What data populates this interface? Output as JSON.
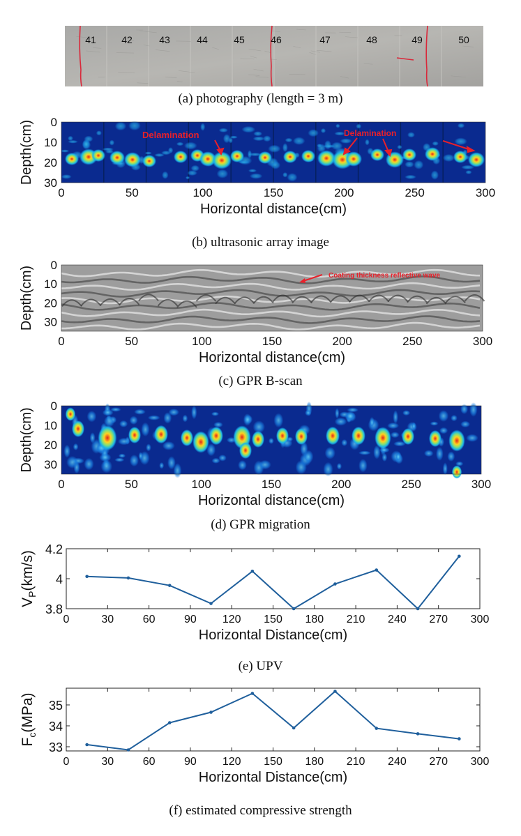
{
  "photo": {
    "caption": "(a) photography (length = 3 m)",
    "segments": [
      "41",
      "42",
      "43",
      "44",
      "45",
      "46",
      "47",
      "48",
      "49",
      "50"
    ]
  },
  "ultrasonic": {
    "caption": "(b) ultrasonic array image",
    "ylabel": "Depth(cm)",
    "xlabel": "Horizontal distance(cm)",
    "yticks": [
      "0",
      "10",
      "20",
      "30"
    ],
    "xticks": [
      "0",
      "50",
      "100",
      "150",
      "200",
      "250",
      "300"
    ],
    "annotations": [
      "Delamination",
      "Delamination"
    ]
  },
  "bscan": {
    "caption": "(c) GPR B-scan",
    "ylabel": "Depth(cm)",
    "xlabel": "Horizontal distance(cm)",
    "yticks": [
      "0",
      "10",
      "20",
      "30"
    ],
    "xticks": [
      "0",
      "50",
      "100",
      "150",
      "200",
      "250",
      "300"
    ],
    "annotation": "Coating thickness reflective wave"
  },
  "migration": {
    "caption": "(d) GPR migration",
    "ylabel": "Depth(cm)",
    "xlabel": "Horizontal distance(cm)",
    "yticks": [
      "0",
      "10",
      "20",
      "30"
    ],
    "xticks": [
      "0",
      "50",
      "100",
      "150",
      "200",
      "250",
      "300"
    ]
  },
  "colors": {
    "line": "#1f5f9c",
    "annotation": "#e8202a",
    "jet_background": "#0a2a8f"
  },
  "chart_data": [
    {
      "type": "line",
      "id": "upv",
      "caption": "(e) UPV",
      "xlabel": "Horizontal Distance(cm)",
      "ylabel_main": "V",
      "ylabel_sub": "P",
      "ylabel_rest": "(km/s)",
      "xlim": [
        0,
        300
      ],
      "ylim": [
        3.8,
        4.2
      ],
      "xticks": [
        "0",
        "30",
        "60",
        "90",
        "120",
        "150",
        "180",
        "210",
        "240",
        "270",
        "300"
      ],
      "yticks": [
        "3.8",
        "4",
        "4.2"
      ],
      "x": [
        15,
        45,
        75,
        105,
        135,
        165,
        195,
        225,
        255,
        285
      ],
      "y": [
        4.015,
        4.005,
        3.955,
        3.835,
        4.05,
        3.8,
        3.965,
        4.058,
        3.8,
        4.15
      ]
    },
    {
      "type": "line",
      "id": "fc",
      "caption": "(f) estimated compressive strength",
      "xlabel": "Horizontal Distance(cm)",
      "ylabel_main": "F",
      "ylabel_sub": "c",
      "ylabel_rest": "(MPa)",
      "xlim": [
        0,
        300
      ],
      "ylim": [
        32.8,
        35.8
      ],
      "xticks": [
        "0",
        "30",
        "60",
        "90",
        "120",
        "150",
        "180",
        "210",
        "240",
        "270",
        "300"
      ],
      "yticks": [
        "33",
        "34",
        "35"
      ],
      "x": [
        15,
        45,
        75,
        105,
        135,
        165,
        195,
        225,
        255,
        285
      ],
      "y": [
        33.1,
        32.85,
        34.15,
        34.65,
        35.55,
        33.9,
        35.65,
        33.88,
        33.62,
        33.38
      ]
    }
  ]
}
